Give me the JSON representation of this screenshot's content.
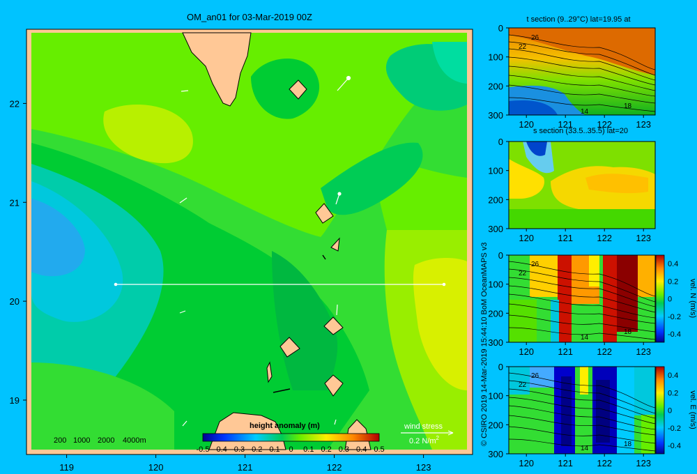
{
  "chart_data": [
    {
      "type": "heatmap",
      "title": "OM_an01 for 03-Mar-2019 00Z",
      "x_ticks": [
        "119",
        "120",
        "121",
        "122",
        "123"
      ],
      "y_ticks": [
        "22",
        "21",
        "20",
        "19"
      ],
      "xlim": [
        118.55,
        123.55
      ],
      "ylim": [
        18.45,
        22.75
      ],
      "colorbar": {
        "label": "height anomaly (m)",
        "ticks": [
          "-0.5",
          "-0.4",
          "-0.3",
          "-0.2",
          "-0.1",
          "0",
          "0.1",
          "0.2",
          "0.3",
          "0.4",
          "0.5"
        ],
        "range": [
          -0.5,
          0.5
        ]
      },
      "depth_legend": [
        "200",
        "1000",
        "2000",
        "4000m"
      ],
      "wind_legend": {
        "label": "wind stress",
        "unit": "0.2 N/m",
        "unit_sup": "2"
      },
      "section_line": {
        "lat": 20,
        "lon_start": 119.5,
        "lon_end": 123.2
      }
    },
    {
      "type": "heatmap",
      "title": "t section (9..29°C) lat=19.95 at",
      "x_ticks": [
        "120",
        "121",
        "122",
        "123"
      ],
      "y_ticks": [
        "0",
        "100",
        "200",
        "300"
      ],
      "contour_labels": [
        "26",
        "22",
        "14",
        "18"
      ]
    },
    {
      "type": "heatmap",
      "title": "s section (33.5..35.5) lat=20",
      "x_ticks": [
        "120",
        "121",
        "122",
        "123"
      ],
      "y_ticks": [
        "0",
        "100",
        "200",
        "300"
      ]
    },
    {
      "type": "heatmap",
      "x_ticks": [
        "120",
        "121",
        "122",
        "123"
      ],
      "y_ticks": [
        "0",
        "100",
        "200",
        "300"
      ],
      "contour_labels": [
        "26",
        "22",
        "14",
        "18"
      ],
      "colorbar": {
        "label": "vel. N (m/s)",
        "ticks": [
          "0.4",
          "0.2",
          "0",
          "-0.2",
          "-0.4"
        ],
        "range": [
          -0.4,
          0.4
        ]
      }
    },
    {
      "type": "heatmap",
      "x_ticks": [
        "120",
        "121",
        "122",
        "123"
      ],
      "y_ticks": [
        "0",
        "100",
        "200",
        "300"
      ],
      "contour_labels": [
        "26",
        "22",
        "14",
        "18"
      ],
      "colorbar": {
        "label": "vel. E (m/s)",
        "ticks": [
          "0.4",
          "0.2",
          "0",
          "-0.2",
          "-0.4"
        ],
        "range": [
          -0.4,
          0.4
        ]
      }
    }
  ],
  "credit": "© CSIRO 2019  14-Mar-2019 15:44:10 BoM OceanMAPS v3"
}
